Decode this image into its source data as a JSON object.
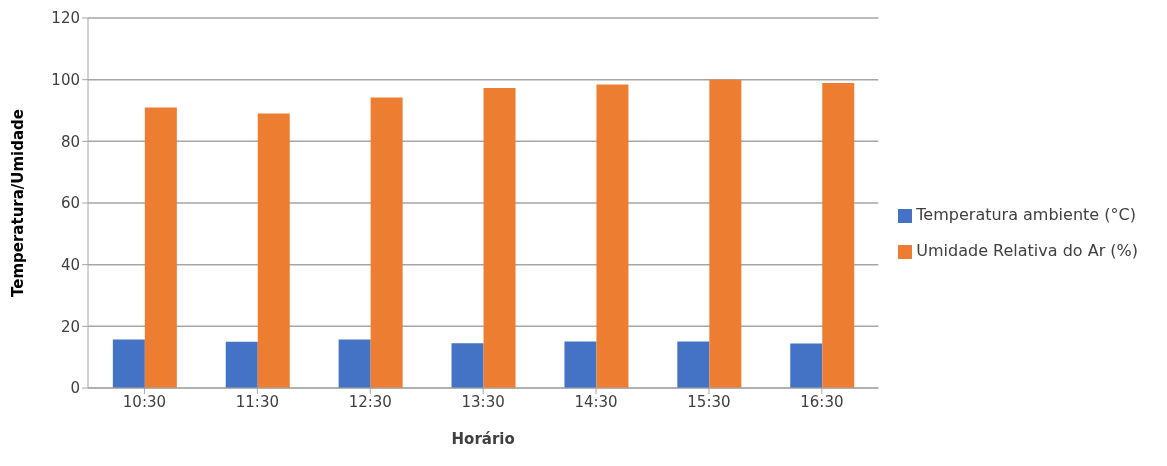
{
  "chart_data": {
    "type": "bar",
    "xlabel": "Horário",
    "ylabel": "Temperatura/Umidade",
    "categories": [
      "10:30",
      "11:30",
      "12:30",
      "13:30",
      "14:30",
      "15:30",
      "16:30"
    ],
    "series": [
      {
        "name": "Temperatura ambiente (°C)",
        "color": "#4472c4",
        "values": [
          15.7,
          15,
          15.7,
          14.5,
          15.1,
          15.1,
          14.4
        ]
      },
      {
        "name": "Umidade Relativa do Ar (%)",
        "color": "#ed7d31",
        "values": [
          91,
          89,
          94.2,
          97.3,
          98.4,
          100,
          98.9
        ]
      }
    ],
    "ylim": [
      0,
      120
    ],
    "yticks": [
      0,
      20,
      40,
      60,
      80,
      100,
      120
    ],
    "grid": "y",
    "legend": "right"
  }
}
